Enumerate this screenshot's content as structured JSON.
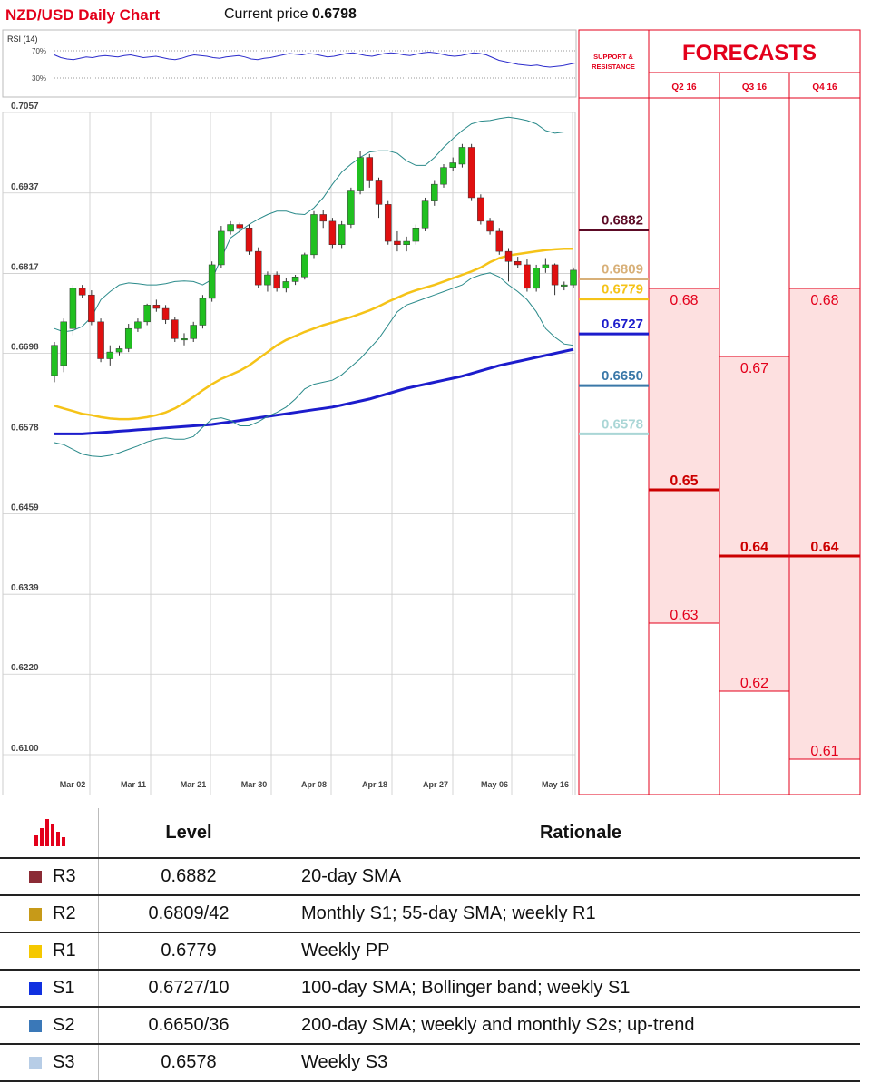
{
  "header": {
    "title": "NZD/USD Daily Chart",
    "price_label": "Current price",
    "price_value": "0.6798"
  },
  "rsi": {
    "label": "RSI (14)",
    "levels": [
      "70%",
      "30%"
    ],
    "values": [
      64,
      60,
      58,
      57,
      59,
      61,
      60,
      62,
      63,
      62,
      61,
      63,
      64,
      62,
      60,
      61,
      62,
      60,
      58,
      57,
      59,
      62,
      64,
      63,
      62,
      60,
      59,
      61,
      62,
      63,
      61,
      58,
      57,
      59,
      60,
      62,
      64,
      66,
      65,
      64,
      66,
      65,
      63,
      61,
      62,
      64,
      66,
      67,
      65,
      63,
      62,
      64,
      66,
      67,
      66,
      64,
      63,
      65,
      67,
      68,
      67,
      65,
      63,
      62,
      63,
      65,
      67,
      66,
      64,
      60,
      56,
      54,
      52,
      50,
      49,
      48,
      49,
      47,
      46,
      47,
      48,
      50,
      52
    ]
  },
  "chart_data": {
    "type": "candlestick",
    "title": "NZD/USD Daily Chart",
    "x_ticks": [
      "Mar 02",
      "Mar 11",
      "Mar 21",
      "Mar 30",
      "Apr 08",
      "Apr 18",
      "Apr 27",
      "May 06",
      "May 16"
    ],
    "y_ticks": [
      "0.7057",
      "0.6937",
      "0.6817",
      "0.6698",
      "0.6578",
      "0.6459",
      "0.6339",
      "0.6220",
      "0.6100"
    ],
    "ylim": [
      0.6085,
      0.7072
    ],
    "candles": [
      [
        0.6665,
        0.671,
        0.6655,
        0.6715
      ],
      [
        0.668,
        0.6745,
        0.667,
        0.675
      ],
      [
        0.6735,
        0.6795,
        0.6725,
        0.68
      ],
      [
        0.6795,
        0.6785,
        0.678,
        0.68
      ],
      [
        0.6785,
        0.6745,
        0.674,
        0.6792
      ],
      [
        0.6745,
        0.669,
        0.6685,
        0.675
      ],
      [
        0.669,
        0.67,
        0.668,
        0.671
      ],
      [
        0.67,
        0.6705,
        0.6695,
        0.671
      ],
      [
        0.6705,
        0.6735,
        0.67,
        0.6742
      ],
      [
        0.6735,
        0.6745,
        0.673,
        0.675
      ],
      [
        0.6745,
        0.677,
        0.674,
        0.6772
      ],
      [
        0.677,
        0.6765,
        0.676,
        0.6778
      ],
      [
        0.6765,
        0.6748,
        0.6742,
        0.677
      ],
      [
        0.6748,
        0.672,
        0.6715,
        0.6752
      ],
      [
        0.672,
        0.672,
        0.671,
        0.6728
      ],
      [
        0.672,
        0.674,
        0.6715,
        0.6745
      ],
      [
        0.674,
        0.678,
        0.6735,
        0.6785
      ],
      [
        0.678,
        0.683,
        0.6775,
        0.6835
      ],
      [
        0.683,
        0.688,
        0.6825,
        0.6888
      ],
      [
        0.688,
        0.689,
        0.6875,
        0.6895
      ],
      [
        0.689,
        0.6885,
        0.6878,
        0.6893
      ],
      [
        0.6885,
        0.685,
        0.6845,
        0.689
      ],
      [
        0.685,
        0.68,
        0.6795,
        0.6856
      ],
      [
        0.68,
        0.6815,
        0.679,
        0.682
      ],
      [
        0.6815,
        0.6795,
        0.679,
        0.682
      ],
      [
        0.6795,
        0.6805,
        0.6789,
        0.681
      ],
      [
        0.6805,
        0.6812,
        0.68,
        0.6815
      ],
      [
        0.6812,
        0.6845,
        0.6808,
        0.6848
      ],
      [
        0.6845,
        0.6905,
        0.684,
        0.691
      ],
      [
        0.6905,
        0.6895,
        0.6885,
        0.6912
      ],
      [
        0.6895,
        0.686,
        0.6855,
        0.69
      ],
      [
        0.686,
        0.689,
        0.6855,
        0.6895
      ],
      [
        0.689,
        0.694,
        0.6885,
        0.6945
      ],
      [
        0.694,
        0.699,
        0.6935,
        0.7
      ],
      [
        0.699,
        0.6955,
        0.6945,
        0.6995
      ],
      [
        0.6955,
        0.692,
        0.69,
        0.696
      ],
      [
        0.692,
        0.6865,
        0.686,
        0.6925
      ],
      [
        0.6865,
        0.686,
        0.685,
        0.688
      ],
      [
        0.686,
        0.6865,
        0.685,
        0.6872
      ],
      [
        0.6865,
        0.6885,
        0.686,
        0.689
      ],
      [
        0.6885,
        0.6925,
        0.688,
        0.693
      ],
      [
        0.6925,
        0.695,
        0.6918,
        0.6955
      ],
      [
        0.695,
        0.6975,
        0.6945,
        0.698
      ],
      [
        0.6975,
        0.6982,
        0.697,
        0.699
      ],
      [
        0.698,
        0.7005,
        0.6975,
        0.701
      ],
      [
        0.7005,
        0.693,
        0.6925,
        0.701
      ],
      [
        0.693,
        0.6895,
        0.689,
        0.6935
      ],
      [
        0.6895,
        0.688,
        0.6875,
        0.69
      ],
      [
        0.688,
        0.685,
        0.6845,
        0.6885
      ],
      [
        0.685,
        0.6835,
        0.6805,
        0.6855
      ],
      [
        0.6835,
        0.683,
        0.6825,
        0.6842
      ],
      [
        0.683,
        0.6795,
        0.679,
        0.6838
      ],
      [
        0.6795,
        0.6825,
        0.679,
        0.683
      ],
      [
        0.6825,
        0.683,
        0.6818,
        0.684
      ],
      [
        0.683,
        0.68,
        0.6785,
        0.6832
      ],
      [
        0.68,
        0.68,
        0.6792,
        0.6805
      ],
      [
        0.68,
        0.6822,
        0.6795,
        0.6826
      ]
    ],
    "series": [
      {
        "name": "",
        "color": "#f5c318",
        "values": [
          0.662,
          0.6616,
          0.6612,
          0.6608,
          0.6606,
          0.6603,
          0.6601,
          0.66,
          0.66,
          0.6601,
          0.6603,
          0.6606,
          0.661,
          0.6616,
          0.6624,
          0.6633,
          0.6643,
          0.6652,
          0.666,
          0.6666,
          0.6672,
          0.668,
          0.669,
          0.67,
          0.671,
          0.6718,
          0.6724,
          0.673,
          0.6735,
          0.674,
          0.6744,
          0.6748,
          0.6752,
          0.6757,
          0.6762,
          0.6768,
          0.6775,
          0.6781,
          0.6787,
          0.6792,
          0.6796,
          0.68,
          0.6805,
          0.681,
          0.6815,
          0.682,
          0.6826,
          0.6834,
          0.684,
          0.6844,
          0.6846,
          0.6848,
          0.685,
          0.6852,
          0.6853,
          0.6854,
          0.6854
        ]
      },
      {
        "name": "",
        "color": "#1c1ccc",
        "values": [
          0.6578,
          0.6578,
          0.6578,
          0.6578,
          0.6579,
          0.658,
          0.6581,
          0.6582,
          0.6583,
          0.6584,
          0.6585,
          0.6586,
          0.6587,
          0.6588,
          0.6589,
          0.659,
          0.6591,
          0.6592,
          0.6594,
          0.6596,
          0.6598,
          0.66,
          0.6602,
          0.6604,
          0.6606,
          0.6608,
          0.661,
          0.6612,
          0.6614,
          0.6616,
          0.6618,
          0.6621,
          0.6624,
          0.6627,
          0.663,
          0.6634,
          0.6638,
          0.6642,
          0.6646,
          0.6649,
          0.6652,
          0.6655,
          0.6658,
          0.6661,
          0.6664,
          0.6668,
          0.6672,
          0.6676,
          0.668,
          0.6683,
          0.6686,
          0.6689,
          0.6692,
          0.6695,
          0.6698,
          0.6701,
          0.6704
        ]
      },
      {
        "name": "",
        "color": "#2a8a8a",
        "values": [
          0.6735,
          0.673,
          0.6732,
          0.6738,
          0.6752,
          0.6778,
          0.679,
          0.68,
          0.6803,
          0.6802,
          0.68,
          0.68,
          0.6802,
          0.6805,
          0.6806,
          0.6805,
          0.68,
          0.6808,
          0.684,
          0.687,
          0.688,
          0.689,
          0.6898,
          0.6905,
          0.691,
          0.691,
          0.6906,
          0.6905,
          0.6915,
          0.693,
          0.695,
          0.6968,
          0.698,
          0.699,
          0.6998,
          0.7,
          0.7,
          0.6996,
          0.6985,
          0.6978,
          0.6978,
          0.699,
          0.7005,
          0.7018,
          0.703,
          0.704,
          0.7044,
          0.7045,
          0.7048,
          0.705,
          0.7048,
          0.7045,
          0.704,
          0.703,
          0.7026,
          0.7028,
          0.7028
        ]
      },
      {
        "name": "",
        "color": "#2a8a8a",
        "values": [
          0.6565,
          0.6562,
          0.6555,
          0.6548,
          0.6545,
          0.6544,
          0.6546,
          0.655,
          0.6555,
          0.656,
          0.6566,
          0.657,
          0.6572,
          0.657,
          0.657,
          0.6574,
          0.6588,
          0.66,
          0.6602,
          0.6598,
          0.659,
          0.659,
          0.6596,
          0.6604,
          0.661,
          0.6618,
          0.663,
          0.6645,
          0.6652,
          0.6655,
          0.6658,
          0.6666,
          0.6678,
          0.669,
          0.6705,
          0.672,
          0.674,
          0.676,
          0.677,
          0.6775,
          0.678,
          0.6785,
          0.679,
          0.6795,
          0.68,
          0.681,
          0.6815,
          0.6818,
          0.6812,
          0.68,
          0.679,
          0.6778,
          0.676,
          0.6735,
          0.6722,
          0.6712,
          0.671
        ]
      }
    ],
    "sr_levels": [
      {
        "value": "0.6882",
        "price": 0.6882,
        "color": "#5c0a25"
      },
      {
        "value": "0.6809",
        "price": 0.6809,
        "color": "#d8b078"
      },
      {
        "value": "0.6779",
        "price": 0.6779,
        "color": "#f5c318"
      },
      {
        "value": "0.6727",
        "price": 0.6727,
        "color": "#1c1ccc"
      },
      {
        "value": "0.6650",
        "price": 0.665,
        "color": "#3a78a8"
      },
      {
        "value": "0.6578",
        "price": 0.6578,
        "color": "#aad6d6"
      }
    ],
    "forecast_columns": [
      {
        "label": "Q2 16",
        "high": "0.68",
        "mid": "0.65",
        "low": "0.63",
        "high_v": 0.68,
        "mid_v": 0.65,
        "low_v": 0.63
      },
      {
        "label": "Q3 16",
        "high": "0.67",
        "mid": "0.64",
        "low": "0.62",
        "high_v": 0.67,
        "mid_v": 0.64,
        "low_v": 0.62
      },
      {
        "label": "Q4 16",
        "high": "0.68",
        "mid": "0.64",
        "low": "0.61",
        "high_v": 0.68,
        "mid_v": 0.64,
        "low_v": 0.61
      }
    ],
    "forecast_scale_anchors": [
      [
        0.68,
        318
      ],
      [
        0.67,
        393
      ],
      [
        0.65,
        540
      ],
      [
        0.64,
        613
      ],
      [
        0.63,
        687
      ],
      [
        0.62,
        762
      ],
      [
        0.61,
        837
      ]
    ]
  },
  "sidebar": {
    "sr_header": "SUPPORT & RESISTANCE",
    "forecast_header": "FORECASTS"
  },
  "table": {
    "header_level": "Level",
    "header_rationale": "Rationale",
    "rows": [
      {
        "code": "R3",
        "color": "#8b2b35",
        "level": "0.6882",
        "rationale": "20-day SMA"
      },
      {
        "code": "R2",
        "color": "#c79a18",
        "level": "0.6809/42",
        "rationale": "Monthly S1; 55-day SMA; weekly R1"
      },
      {
        "code": "R1",
        "color": "#f5c800",
        "level": "0.6779",
        "rationale": "Weekly PP"
      },
      {
        "code": "S1",
        "color": "#1030e0",
        "level": "0.6727/10",
        "rationale": "100-day SMA; Bollinger band; weekly S1"
      },
      {
        "code": "S2",
        "color": "#3a78b8",
        "level": "0.6650/36",
        "rationale": "200-day SMA; weekly and monthly S2s; up-trend"
      },
      {
        "code": "S3",
        "color": "#b7cde6",
        "level": "0.6578",
        "rationale": "Weekly S3"
      }
    ]
  }
}
